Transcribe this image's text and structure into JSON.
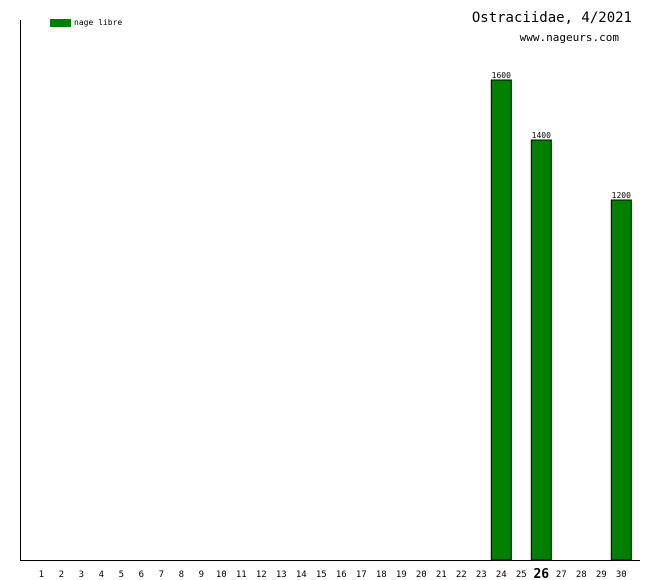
{
  "chart_data": {
    "type": "bar",
    "title": "Ostraciidae, 4/2021",
    "subtitle": "www.nageurs.com",
    "xlabel": "",
    "ylabel": "",
    "categories": [
      "1",
      "2",
      "3",
      "4",
      "5",
      "6",
      "7",
      "8",
      "9",
      "10",
      "11",
      "12",
      "13",
      "14",
      "15",
      "16",
      "17",
      "18",
      "19",
      "20",
      "21",
      "22",
      "23",
      "24",
      "25",
      "26",
      "27",
      "28",
      "29",
      "30"
    ],
    "highlight_category": "26",
    "series": [
      {
        "name": "nage libre",
        "color": "#008000",
        "values": [
          0,
          0,
          0,
          0,
          0,
          0,
          0,
          0,
          0,
          0,
          0,
          0,
          0,
          0,
          0,
          0,
          0,
          0,
          0,
          0,
          0,
          0,
          0,
          1600,
          0,
          1400,
          0,
          0,
          0,
          1200
        ],
        "labels": [
          "",
          "",
          "",
          "",
          "",
          "",
          "",
          "",
          "",
          "",
          "",
          "",
          "",
          "",
          "",
          "",
          "",
          "",
          "",
          "",
          "",
          "",
          "",
          "1600",
          "",
          "1400",
          "",
          "",
          "",
          "1200"
        ]
      }
    ],
    "ylim": [
      0,
      2000
    ],
    "grid": false,
    "legend_position": "top-left"
  }
}
